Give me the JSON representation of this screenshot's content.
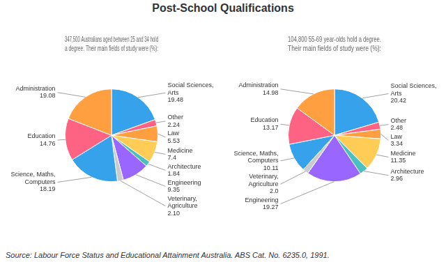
{
  "title": "Post-School Qualifications",
  "annotations": [
    "Source: Labour Force Status and Educational Attainment Australia. ABS Cat. No. 6235.0, 1991."
  ],
  "chart_data": [
    {
      "type": "pie",
      "title": "347,500 Australians aged between 25 and 34 hold\na degree. Their main fields of study were (%):",
      "categories": [
        "Social Sciences,\nArts",
        "Other",
        "Law",
        "Medicine",
        "Architecture",
        "Engineering",
        "Veterinary,\nAgriculture",
        "Science, Maths,\nComputers",
        "Education",
        "Administration"
      ],
      "values": [
        19.48,
        2.24,
        5.53,
        7.4,
        1.84,
        9.35,
        2.1,
        18.19,
        14.76,
        19.08
      ],
      "value_labels": [
        "19.48",
        "2.24",
        "5.53",
        "7.4",
        "1.84",
        "9.35",
        "2.10",
        "18.19",
        "14.76",
        "19.08"
      ],
      "data_labels": true
    },
    {
      "type": "pie",
      "title": "104,800 55-69 year-olds hold a degree.\nTheir main fields of study were (%):",
      "categories": [
        "Social Sciences,\nArts",
        "Other",
        "Law",
        "Medicine",
        "Architecture",
        "Engineering",
        "Veterinary,\nAgriculture",
        "Science, Maths,\nComputers",
        "Education",
        "Administration"
      ],
      "values": [
        20.42,
        2.48,
        3.34,
        11.35,
        2.96,
        19.27,
        2.0,
        10.11,
        13.17,
        14.98
      ],
      "value_labels": [
        "20.42",
        "2.48",
        "3.34",
        "11.35",
        "2.96",
        "19.27",
        "2.0",
        "10.11",
        "13.17",
        "14.98"
      ],
      "data_labels": true
    }
  ]
}
